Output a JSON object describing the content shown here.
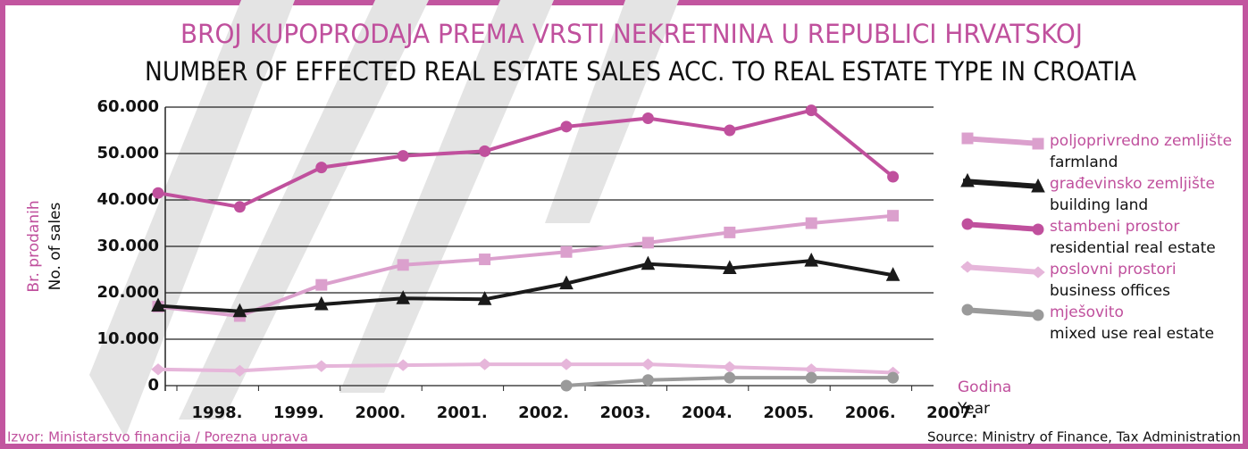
{
  "chart_data": {
    "type": "line",
    "title": "BROJ KUPOPRODAJA PREMA VRSTI NEKRETNINA U REPUBLICI HRVATSKOJ",
    "subtitle": "NUMBER OF EFFECTED REAL ESTATE SALES ACC. TO REAL ESTATE TYPE IN CROATIA",
    "y_label": "Br. prodanih",
    "y_label_en": "No. of sales",
    "x_label": "Godina",
    "x_label_en": "Year",
    "source": "Izvor: Ministarstvo financija / Porezna uprava",
    "source_en": "Source: Ministry of Finance, Tax Administration",
    "categories": [
      "1998.",
      "1999.",
      "2000.",
      "2001.",
      "2002.",
      "2003.",
      "2004.",
      "2005.",
      "2006.",
      "2007."
    ],
    "ylim": [
      0,
      60000
    ],
    "yticks": [
      0,
      {
        "value": 10000,
        "label": "10.000"
      },
      {
        "value": 20000,
        "label": "20.000"
      },
      {
        "value": 30000,
        "label": "30.000"
      },
      {
        "value": 40000,
        "label": "40.000"
      },
      {
        "value": 50000,
        "label": "50.000"
      },
      {
        "value": 60000,
        "label": "60.000"
      }
    ],
    "grid": true,
    "legend": "right",
    "series": [
      {
        "name": "poljoprivredno zemljište",
        "name_en": "farmland",
        "color": "#dba0cd",
        "marker": "square",
        "values": [
          17000,
          15000,
          21700,
          26000,
          27200,
          28800,
          30800,
          33000,
          35000,
          36600
        ]
      },
      {
        "name": "građevinsko zemljište",
        "name_en": "building land",
        "color": "#1a1a1a",
        "marker": "triangle",
        "values": [
          17200,
          16000,
          17500,
          18800,
          18600,
          22000,
          26200,
          25300,
          26900,
          23800
        ]
      },
      {
        "name": "stambeni prostor",
        "name_en": "residential real estate",
        "color": "#c0509d",
        "marker": "circle",
        "values": [
          41500,
          38500,
          47000,
          49500,
          50500,
          55800,
          57600,
          55000,
          59300,
          45000
        ]
      },
      {
        "name": "poslovni prostori",
        "name_en": "business offices",
        "color": "#e6b6da",
        "marker": "diamond",
        "values": [
          3500,
          3200,
          4200,
          4400,
          4600,
          4600,
          4600,
          4000,
          3500,
          2800
        ]
      },
      {
        "name": "mješovito",
        "name_en": "mixed use real estate",
        "color": "#9a9a9a",
        "marker": "circle",
        "values": [
          null,
          null,
          null,
          null,
          null,
          0,
          1200,
          1700,
          1700,
          1700
        ]
      }
    ]
  }
}
